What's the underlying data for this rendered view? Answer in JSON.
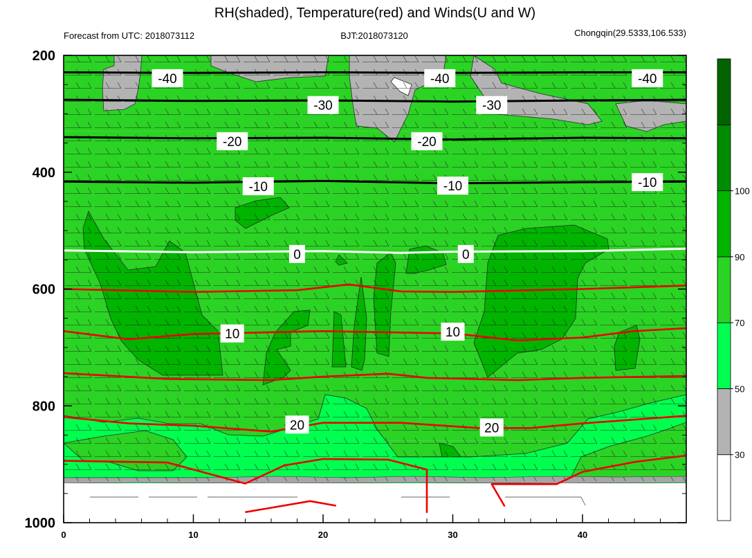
{
  "chart_data": {
    "type": "contour",
    "title": "RH(shaded), Temperature(red) and Winds(U and W)",
    "subtitle_left": "Forecast from UTC: 2018073112",
    "subtitle_center": "BJT:2018073120",
    "subtitle_right": "Chongqin(29.5333,106.533)",
    "x_ticks": [
      0,
      10,
      20,
      30,
      40
    ],
    "xlim": [
      0,
      48
    ],
    "y_ticks": [
      200,
      400,
      600,
      800,
      1000
    ],
    "ylim": [
      200,
      1000
    ],
    "y_axis_inverted": true,
    "colorbar": {
      "tick_labels": [
        "30",
        "50",
        "70",
        "90",
        "100"
      ],
      "levels": [
        30,
        50,
        70,
        90,
        100
      ],
      "colors": [
        "#ffffff",
        "#b3b3b3",
        "#00ff4f",
        "#2bd324",
        "#00b400",
        "#008c00",
        "#006400"
      ]
    },
    "rh_background_bands": [
      {
        "p_top": 200,
        "p_bottom": 330,
        "rh": 85
      },
      {
        "p_top": 330,
        "p_bottom": 530,
        "rh": 80
      },
      {
        "p_top": 530,
        "p_bottom": 860,
        "rh": 78
      },
      {
        "p_top": 860,
        "p_bottom": 925,
        "rh": 72
      },
      {
        "p_top": 925,
        "p_bottom": 940,
        "rh": 65
      }
    ],
    "temperature_contours": [
      {
        "value": -40,
        "label": "-40",
        "line_color": "#000000",
        "points": [
          [
            0,
            229
          ],
          [
            10,
            230
          ],
          [
            20,
            229
          ],
          [
            30,
            230
          ],
          [
            40,
            229
          ],
          [
            48,
            229
          ]
        ],
        "label_at": [
          [
            8,
            239
          ],
          [
            29,
            239
          ],
          [
            45,
            239
          ]
        ]
      },
      {
        "value": -30,
        "label": "-30",
        "line_color": "#000000",
        "points": [
          [
            0,
            276
          ],
          [
            10,
            278
          ],
          [
            20,
            277
          ],
          [
            30,
            279
          ],
          [
            40,
            277
          ],
          [
            48,
            276
          ]
        ],
        "label_at": [
          [
            20,
            285
          ],
          [
            33,
            285
          ]
        ]
      },
      {
        "value": -20,
        "label": "-20",
        "line_color": "#000000",
        "points": [
          [
            0,
            340
          ],
          [
            10,
            342
          ],
          [
            20,
            341
          ],
          [
            30,
            344
          ],
          [
            40,
            341
          ],
          [
            48,
            342
          ]
        ],
        "label_at": [
          [
            13,
            347
          ],
          [
            28,
            347
          ]
        ]
      },
      {
        "value": -10,
        "label": "-10",
        "line_color": "#000000",
        "points": [
          [
            0,
            416
          ],
          [
            10,
            418
          ],
          [
            20,
            415
          ],
          [
            30,
            419
          ],
          [
            40,
            417
          ],
          [
            48,
            416
          ]
        ],
        "label_at": [
          [
            15,
            424
          ],
          [
            30,
            423
          ],
          [
            45,
            417
          ]
        ]
      },
      {
        "value": 0,
        "label": "0",
        "line_color": "#ffffff",
        "points": [
          [
            0,
            534
          ],
          [
            10,
            537
          ],
          [
            20,
            535
          ],
          [
            26,
            538
          ],
          [
            30,
            536
          ],
          [
            40,
            535
          ],
          [
            48,
            531
          ]
        ],
        "label_at": [
          [
            18,
            540
          ],
          [
            31,
            540
          ]
        ]
      },
      {
        "value": 5,
        "label": "",
        "line_color": "#ee0000",
        "points": [
          [
            0,
            600
          ],
          [
            10,
            605
          ],
          [
            18,
            602
          ],
          [
            22,
            592
          ],
          [
            26,
            604
          ],
          [
            30,
            605
          ],
          [
            40,
            600
          ],
          [
            48,
            594
          ]
        ],
        "label_at": []
      },
      {
        "value": 10,
        "label": "10",
        "line_color": "#ee0000",
        "points": [
          [
            0,
            672
          ],
          [
            5,
            686
          ],
          [
            10,
            677
          ],
          [
            20,
            672
          ],
          [
            30,
            676
          ],
          [
            35,
            688
          ],
          [
            40,
            683
          ],
          [
            44,
            672
          ],
          [
            48,
            667
          ]
        ],
        "label_at": [
          [
            13,
            676
          ],
          [
            30,
            673
          ]
        ]
      },
      {
        "value": 15,
        "label": "",
        "line_color": "#ee0000",
        "points": [
          [
            0,
            744
          ],
          [
            8,
            754
          ],
          [
            16,
            756
          ],
          [
            20,
            750
          ],
          [
            25,
            745
          ],
          [
            28,
            752
          ],
          [
            35,
            756
          ],
          [
            40,
            752
          ],
          [
            48,
            749
          ]
        ],
        "label_at": []
      },
      {
        "value": 20,
        "label": "20",
        "line_color": "#ee0000",
        "points": [
          [
            0,
            819
          ],
          [
            5,
            830
          ],
          [
            10,
            834
          ],
          [
            16,
            844
          ],
          [
            20,
            829
          ],
          [
            26,
            829
          ],
          [
            32,
            838
          ],
          [
            36,
            838
          ],
          [
            40,
            830
          ],
          [
            48,
            817
          ]
        ],
        "label_at": [
          [
            18,
            832
          ],
          [
            33,
            837
          ]
        ]
      },
      {
        "value": 25,
        "label": "",
        "line_color": "#ee0000",
        "points": [
          [
            0,
            894
          ],
          [
            8,
            897
          ],
          [
            14,
            933
          ],
          [
            17,
            902
          ],
          [
            20,
            891
          ],
          [
            25,
            892
          ],
          [
            28,
            909
          ],
          [
            28,
            983
          ]
        ],
        "label_at": []
      },
      {
        "value": 25,
        "label": "",
        "line_color": "#ee0000",
        "points": [
          [
            34,
            972
          ],
          [
            33,
            934
          ],
          [
            38,
            934
          ],
          [
            40,
            913
          ],
          [
            44,
            896
          ],
          [
            48,
            885
          ]
        ],
        "label_at": []
      },
      {
        "value": 30,
        "label": "",
        "line_color": "#ee0000",
        "points": [
          [
            14,
            982
          ],
          [
            19,
            963
          ],
          [
            21,
            971
          ]
        ],
        "label_at": []
      }
    ]
  }
}
